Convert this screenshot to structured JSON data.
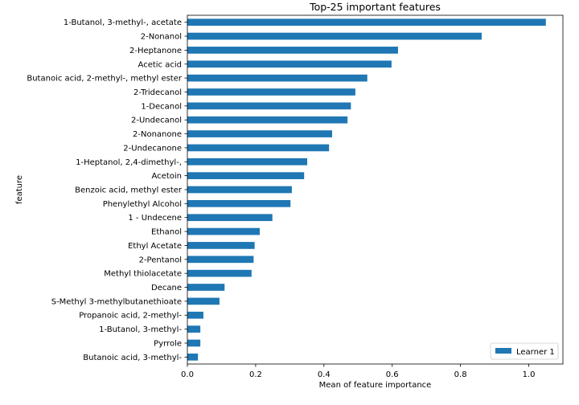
{
  "chart_data": {
    "type": "bar",
    "orientation": "horizontal",
    "title": "Top-25 important features",
    "xlabel": "Mean of feature importance",
    "ylabel": "feature",
    "xlim": [
      0,
      1.1
    ],
    "xticks": [
      0.0,
      0.2,
      0.4,
      0.6,
      0.8,
      1.0
    ],
    "xtick_labels": [
      "0.0",
      "0.2",
      "0.4",
      "0.6",
      "0.8",
      "1.0"
    ],
    "grid": false,
    "legend_position": "lower-right",
    "bar_color": "#1f77b4",
    "categories": [
      "1-Butanol, 3-methyl-, acetate",
      "2-Nonanol",
      "2-Heptanone",
      "Acetic acid",
      "Butanoic acid, 2-methyl-, methyl ester",
      "2-Tridecanol",
      "1-Decanol",
      "2-Undecanol",
      "2-Nonanone",
      "2-Undecanone",
      "1-Heptanol, 2,4-dimethyl-,",
      "Acetoin",
      "Benzoic acid, methyl ester",
      "Phenylethyl Alcohol",
      "1 - Undecene",
      "Ethanol",
      "Ethyl Acetate",
      "2-Pentanol",
      "Methyl thiolacetate",
      "Decane",
      "S-Methyl 3-methylbutanethioate",
      "Propanoic acid, 2-methyl-",
      "1-Butanol, 3-methyl-",
      "Pyrrole",
      "Butanoic acid, 3-methyl-"
    ],
    "series": [
      {
        "name": "Learner 1",
        "values": [
          1.05,
          0.862,
          0.617,
          0.598,
          0.527,
          0.492,
          0.479,
          0.469,
          0.424,
          0.415,
          0.351,
          0.342,
          0.306,
          0.302,
          0.249,
          0.212,
          0.197,
          0.194,
          0.188,
          0.109,
          0.094,
          0.047,
          0.038,
          0.038,
          0.031
        ]
      }
    ]
  }
}
